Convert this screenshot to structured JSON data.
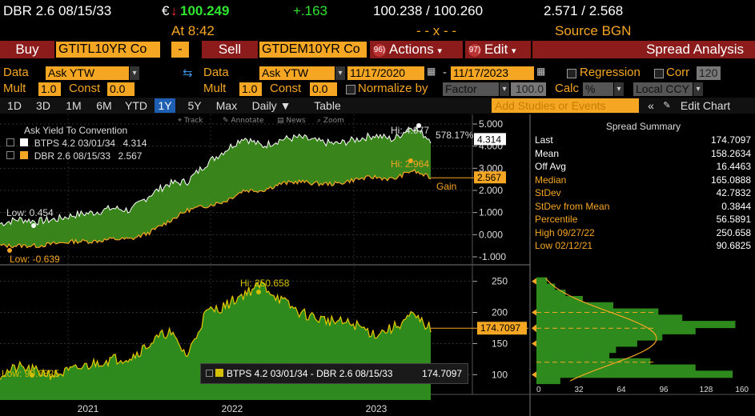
{
  "quote": {
    "security": "DBR 2.6 08/15/33",
    "currency_mark": "€",
    "arrow": "↓",
    "last": "100.249",
    "change": "+.163",
    "bid_ask": "100.238 / 100.260",
    "yield": "2.571 / 2.568",
    "time": "At  8:42",
    "mid": "- - x - -",
    "source": "Source BGN"
  },
  "actionbar": {
    "buy_label": "Buy",
    "buy_ticker": "GTITL10YR Co",
    "minus": "-",
    "sell_label": "Sell",
    "sell_ticker": "GTDEM10YR Co",
    "actions_num": "96)",
    "actions_label": "Actions",
    "edit_num": "97)",
    "edit_label": "Edit",
    "spread_analysis": "Spread Analysis"
  },
  "params": {
    "data_label": "Data",
    "data_value": "Ask YTW",
    "data2_label": "Data",
    "data2_value": "Ask YTW",
    "start_date": "11/17/2020",
    "end_date": "11/17/2023",
    "regression_label": "Regression",
    "corr_label": "Corr",
    "corr_value": "120",
    "mult_label": "Mult",
    "mult_value": "1.0",
    "const_label": "Const",
    "const_value": "0.0",
    "mult2_label": "Mult",
    "mult2_value": "1.0",
    "const2_label": "Const",
    "const2_value": "0.0",
    "normalize_label": "Normalize by",
    "factor_value": "Factor",
    "factor_num": "100.0",
    "calc_label": "Calc",
    "calc_value": "%",
    "ccy_value": "Local CCY"
  },
  "tabs": {
    "periods": [
      "1D",
      "3D",
      "1M",
      "6M",
      "YTD",
      "1Y",
      "5Y",
      "Max"
    ],
    "active": "1Y",
    "daily": "Daily ▼",
    "table": "Table",
    "studies_placeholder": "Add Studies or Events",
    "edit_chart": "Edit Chart"
  },
  "tools": {
    "track": "Track",
    "annotate": "Annotate",
    "news": "News",
    "zoom": "Zoom"
  },
  "legend_top": {
    "title": "Ask Yield To Convention",
    "series": [
      {
        "name": "BTPS 4.2 03/01/34",
        "value": "4.314",
        "color": "#ffffff"
      },
      {
        "name": "DBR 2.6 08/15/33",
        "value": "2.567",
        "color": "#f5a623"
      }
    ]
  },
  "legend_bottom": {
    "label": "BTPS 4.2 03/01/34 - DBR 2.6 08/15/33",
    "value": "174.7097"
  },
  "annotations": {
    "btps_hi": "Hi: 4.977",
    "pct": "578.17%",
    "btps_last": "4.314",
    "dbr_hi": "Hi: 2.964",
    "dbr_last": "2.567",
    "gain": "Gain",
    "btps_low": "Low: 0.454",
    "dbr_low": "Low: -0.639",
    "spread_hi": "Hi: 250.658",
    "spread_last": "174.7097",
    "spread_low": "Low: 90.6825"
  },
  "summary": {
    "title": "Spread Summary",
    "rows": [
      {
        "k": "Last",
        "v": "174.7097",
        "color": "#ffffff"
      },
      {
        "k": "Mean",
        "v": "158.2634",
        "color": "#ffffff"
      },
      {
        "k": "Off Avg",
        "v": "16.4463",
        "color": "#ffffff"
      },
      {
        "k": "Median",
        "v": "165.0888",
        "color": "#f5a623"
      },
      {
        "k": "StDev",
        "v": "42.7832",
        "color": "#f5a623"
      },
      {
        "k": "StDev from Mean",
        "v": "0.3844",
        "color": "#f5a623"
      },
      {
        "k": "Percentile",
        "v": "56.5891",
        "color": "#f5a623"
      },
      {
        "k": "High 09/27/22",
        "v": "250.658",
        "color": "#f5a623"
      },
      {
        "k": "Low 02/12/21",
        "v": "90.6825",
        "color": "#f5a623"
      }
    ]
  },
  "chart_data": [
    {
      "type": "area",
      "title": "Ask Yield To Convention",
      "ylim": [
        -1,
        5
      ],
      "y_ticks": [
        "5.000",
        "4.000",
        "3.000",
        "2.000",
        "1.000",
        "0.000",
        "-1.000"
      ],
      "x_ticks": [
        "2021",
        "2022",
        "2023"
      ],
      "series": [
        {
          "name": "BTPS 4.2 03/01/34",
          "values": [
            0.5,
            0.7,
            0.6,
            0.7,
            0.9,
            1.0,
            1.2,
            1.1,
            1.8,
            2.3,
            2.4,
            3.2,
            3.8,
            4.4,
            4.0,
            4.3,
            4.4,
            4.2,
            4.1,
            4.3,
            4.5,
            4.3,
            4.9,
            4.3
          ]
        },
        {
          "name": "DBR 2.6 08/15/33",
          "values": [
            -0.5,
            -0.5,
            -0.5,
            -0.4,
            -0.3,
            -0.3,
            -0.2,
            -0.2,
            0.1,
            0.6,
            1.1,
            1.3,
            1.5,
            2.0,
            2.0,
            2.3,
            2.4,
            2.3,
            2.3,
            2.5,
            2.6,
            2.5,
            2.9,
            2.57
          ]
        }
      ]
    },
    {
      "type": "area",
      "ylim": [
        85,
        265
      ],
      "y_ticks": [
        "250",
        "200",
        "150",
        "100"
      ],
      "series": [
        {
          "name": "BTPS 4.2 03/01/34 - DBR 2.6 08/15/33",
          "values": [
            100,
            112,
            105,
            100,
            108,
            118,
            125,
            128,
            150,
            170,
            130,
            200,
            210,
            230,
            245,
            220,
            200,
            190,
            185,
            180,
            165,
            175,
            195,
            174.7
          ]
        }
      ]
    },
    {
      "type": "bar",
      "x_ticks": [
        "0",
        "32",
        "64",
        "96",
        "128",
        "160"
      ],
      "bins": [
        250,
        240,
        230,
        220,
        210,
        200,
        190,
        180,
        170,
        160,
        150,
        140,
        130,
        120,
        110,
        100,
        90
      ],
      "counts": [
        8,
        14,
        22,
        35,
        58,
        92,
        110,
        150,
        120,
        95,
        76,
        60,
        55,
        86,
        120,
        148,
        18
      ]
    }
  ]
}
